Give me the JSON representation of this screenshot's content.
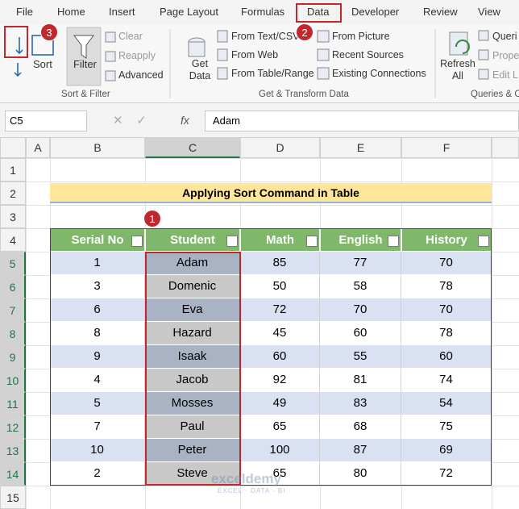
{
  "tabs": [
    "File",
    "Home",
    "Insert",
    "Page Layout",
    "Formulas",
    "Data",
    "Developer",
    "Review",
    "View"
  ],
  "ribbon": {
    "sort_filter": {
      "sort": "Sort",
      "filter": "Filter",
      "clear": "Clear",
      "reapply": "Reapply",
      "advanced": "Advanced",
      "group": "Sort & Filter"
    },
    "get_transform": {
      "get_data": "Get Data",
      "from_text": "From Text/CSV",
      "from_web": "From Web",
      "from_table": "From Table/Range",
      "from_picture": "From Picture",
      "recent": "Recent Sources",
      "existing": "Existing Connections",
      "group": "Get & Transform Data"
    },
    "queries": {
      "refresh": "Refresh All",
      "queries": "Queri",
      "properties": "Prope",
      "edit_links": "Edit L",
      "group": "Queries & C"
    }
  },
  "formula_bar": {
    "name_box": "C5",
    "fx": "fx",
    "value": "Adam"
  },
  "columns": [
    "A",
    "B",
    "C",
    "D",
    "E",
    "F"
  ],
  "rows": [
    1,
    2,
    3,
    4,
    5,
    6,
    7,
    8,
    9,
    10,
    11,
    12,
    13,
    14,
    15
  ],
  "sheet": {
    "title": "Applying Sort Command in Table",
    "table": {
      "headers": [
        "Serial No",
        "Student",
        "Math",
        "English",
        "History"
      ],
      "rows": [
        [
          1,
          "Adam",
          85,
          77,
          70
        ],
        [
          3,
          "Domenic",
          50,
          58,
          78
        ],
        [
          6,
          "Eva",
          72,
          70,
          70
        ],
        [
          8,
          "Hazard",
          45,
          60,
          78
        ],
        [
          9,
          "Isaak",
          60,
          55,
          60
        ],
        [
          4,
          "Jacob",
          92,
          81,
          74
        ],
        [
          5,
          "Mosses",
          49,
          83,
          54
        ],
        [
          7,
          "Paul",
          65,
          68,
          75
        ],
        [
          10,
          "Peter",
          100,
          87,
          69
        ],
        [
          2,
          "Steve",
          65,
          80,
          72
        ]
      ]
    }
  },
  "callouts": [
    "1",
    "2",
    "3"
  ],
  "watermark": {
    "name": "exceldemy",
    "tagline": "EXCEL · DATA · BI"
  }
}
